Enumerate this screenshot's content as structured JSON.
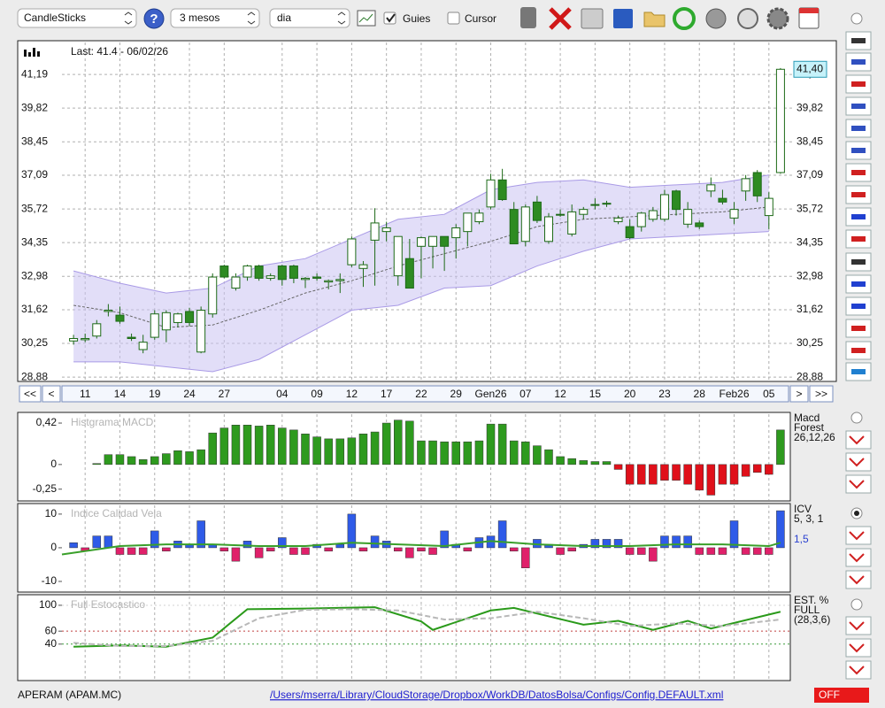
{
  "toolbar": {
    "chart_type": "CandleSticks",
    "help": "?",
    "period": "3 mesos",
    "interval": "dia",
    "guides": {
      "label": "Guies",
      "checked": true
    },
    "cursor": {
      "label": "Cursor",
      "checked": false
    }
  },
  "navigation": [
    "<<",
    "<",
    ">",
    ">>"
  ],
  "chart_data": [
    {
      "type": "candlestick",
      "title": "Last: 41.4 - 06/02/26",
      "last_label": {
        "value": 41.4,
        "label": "41,40"
      },
      "xlim": [
        -1,
        62
      ],
      "xticks": [
        {
          "value": 1,
          "label": "11"
        },
        {
          "value": 4,
          "label": "14"
        },
        {
          "value": 7,
          "label": "19"
        },
        {
          "value": 10,
          "label": "24"
        },
        {
          "value": 13,
          "label": "27"
        },
        {
          "value": 18,
          "label": "04"
        },
        {
          "value": 21,
          "label": "09"
        },
        {
          "value": 24,
          "label": "12"
        },
        {
          "value": 27,
          "label": "17"
        },
        {
          "value": 30,
          "label": "22"
        },
        {
          "value": 33,
          "label": "29"
        },
        {
          "value": 36,
          "label": "Gen26"
        },
        {
          "value": 39,
          "label": "07"
        },
        {
          "value": 42,
          "label": "12"
        },
        {
          "value": 45,
          "label": "15"
        },
        {
          "value": 48,
          "label": "20"
        },
        {
          "value": 51,
          "label": "23"
        },
        {
          "value": 54,
          "label": "28"
        },
        {
          "value": 57,
          "label": "Feb26"
        },
        {
          "value": 60,
          "label": "05"
        }
      ],
      "ylim": [
        28.74,
        42.49
      ],
      "yticks": [
        {
          "value": 28.88,
          "label": "28,88"
        },
        {
          "value": 30.25,
          "label": "30,25"
        },
        {
          "value": 31.62,
          "label": "31,62"
        },
        {
          "value": 32.98,
          "label": "32,98"
        },
        {
          "value": 34.35,
          "label": "34,35"
        },
        {
          "value": 35.72,
          "label": "35,72"
        },
        {
          "value": 37.09,
          "label": "37,09"
        },
        {
          "value": 38.45,
          "label": "38,45"
        },
        {
          "value": 39.82,
          "label": "39,82"
        },
        {
          "value": 41.19,
          "label": "41,19"
        }
      ],
      "grid": true,
      "up_color": "#ffffff",
      "down_color": "#2e8b22",
      "edge_color": "#1d6a17",
      "open": [
        30.35,
        30.4,
        30.55,
        31.55,
        31.4,
        30.5,
        30.0,
        30.5,
        30.8,
        31.1,
        31.55,
        29.9,
        31.45,
        33.4,
        32.5,
        32.95,
        33.4,
        32.9,
        33.4,
        33.4,
        32.85,
        32.95,
        32.75,
        32.8,
        33.45,
        33.3,
        34.45,
        34.8,
        33.0,
        33.7,
        34.2,
        34.2,
        34.6,
        34.55,
        34.8,
        35.2,
        35.8,
        36.9,
        35.7,
        34.4,
        36.0,
        34.4,
        35.5,
        34.7,
        35.5,
        35.9,
        35.95,
        35.2,
        35.0,
        35.0,
        35.3,
        35.3,
        36.45,
        35.1,
        35.15,
        36.45,
        36.15,
        35.35,
        36.45,
        37.2,
        35.45,
        37.2
      ],
      "high": [
        30.6,
        30.65,
        31.2,
        31.85,
        31.75,
        30.65,
        30.6,
        31.6,
        31.6,
        31.5,
        31.7,
        31.75,
        33.1,
        33.45,
        33.1,
        33.45,
        33.45,
        33.1,
        33.45,
        33.45,
        32.95,
        33.1,
        32.85,
        33.1,
        34.6,
        33.6,
        35.75,
        35.2,
        34.6,
        34.5,
        34.6,
        34.6,
        34.6,
        35.1,
        35.55,
        35.7,
        37.15,
        37.35,
        36.0,
        35.9,
        36.25,
        35.55,
        35.7,
        35.9,
        35.8,
        36.15,
        36.05,
        35.45,
        35.3,
        35.6,
        35.8,
        36.5,
        36.5,
        36.0,
        35.25,
        37.0,
        36.5,
        36.0,
        37.1,
        37.3,
        36.4,
        41.45
      ],
      "low": [
        30.2,
        30.3,
        30.45,
        31.35,
        31.05,
        30.35,
        29.85,
        30.4,
        30.3,
        30.9,
        30.95,
        29.85,
        31.3,
        32.9,
        32.4,
        32.8,
        32.8,
        32.8,
        32.6,
        32.7,
        32.5,
        32.8,
        32.45,
        32.3,
        33.35,
        32.55,
        32.6,
        34.4,
        32.6,
        32.5,
        32.9,
        33.3,
        33.2,
        33.7,
        34.2,
        35.1,
        35.7,
        36.05,
        34.3,
        34.2,
        35.15,
        34.3,
        35.4,
        34.6,
        35.3,
        35.7,
        35.8,
        35.1,
        34.5,
        34.8,
        35.2,
        35.2,
        35.45,
        34.95,
        34.9,
        36.2,
        35.9,
        35.1,
        36.05,
        36.0,
        34.9,
        37.15
      ],
      "close": [
        30.45,
        30.45,
        31.05,
        31.6,
        31.15,
        30.45,
        30.3,
        31.45,
        31.5,
        31.45,
        31.1,
        31.6,
        32.95,
        32.95,
        32.95,
        33.4,
        32.9,
        33.0,
        32.85,
        32.9,
        32.9,
        32.9,
        32.8,
        32.85,
        34.5,
        33.45,
        35.15,
        34.95,
        34.6,
        32.5,
        34.55,
        34.6,
        34.2,
        34.95,
        35.55,
        35.55,
        36.9,
        36.1,
        34.3,
        35.8,
        35.25,
        35.4,
        35.5,
        35.6,
        35.7,
        35.9,
        35.95,
        35.35,
        34.55,
        35.55,
        35.65,
        36.3,
        35.7,
        35.7,
        35.0,
        36.7,
        36.0,
        35.7,
        36.95,
        36.25,
        36.15,
        41.4
      ],
      "bands": {
        "color": "#cbc3f2",
        "x": [
          0,
          4,
          8,
          12,
          16,
          20,
          24,
          28,
          32,
          36,
          40,
          44,
          48,
          52,
          56,
          60
        ],
        "upper": [
          33.2,
          32.7,
          32.3,
          32.5,
          33.4,
          33.7,
          34.5,
          35.3,
          35.5,
          36.5,
          36.8,
          36.9,
          36.6,
          36.7,
          36.8,
          37.1
        ],
        "middle": [
          31.8,
          31.5,
          30.9,
          31.0,
          31.6,
          32.3,
          32.8,
          33.4,
          33.9,
          34.4,
          35.0,
          35.3,
          35.4,
          35.5,
          35.6,
          35.8
        ],
        "lower": [
          29.5,
          29.5,
          29.3,
          29.1,
          29.6,
          30.6,
          31.6,
          31.8,
          32.5,
          32.6,
          33.4,
          34.0,
          34.5,
          34.6,
          34.7,
          34.8
        ]
      }
    },
    {
      "type": "bar",
      "title": "Histgrama MACD",
      "legend": [
        "Macd",
        "Forest",
        "26,12,26"
      ],
      "xlim": [
        -1,
        62
      ],
      "ylim": [
        -0.36,
        0.51
      ],
      "yticks": [
        {
          "value": 0.42,
          "label": "0,42"
        },
        0,
        {
          "value": -0.25,
          "label": "-0,25"
        }
      ],
      "positive_color": "#2e9a1e",
      "negative_color": "#e0101a",
      "values": [
        0,
        0,
        0.01,
        0.1,
        0.1,
        0.08,
        0.05,
        0.08,
        0.11,
        0.14,
        0.13,
        0.15,
        0.32,
        0.37,
        0.4,
        0.4,
        0.39,
        0.4,
        0.37,
        0.35,
        0.31,
        0.28,
        0.26,
        0.26,
        0.27,
        0.31,
        0.33,
        0.42,
        0.45,
        0.44,
        0.24,
        0.24,
        0.23,
        0.23,
        0.23,
        0.24,
        0.41,
        0.41,
        0.24,
        0.23,
        0.19,
        0.15,
        0.08,
        0.06,
        0.04,
        0.03,
        0.03,
        -0.05,
        -0.2,
        -0.2,
        -0.2,
        -0.16,
        -0.16,
        -0.2,
        -0.26,
        -0.31,
        -0.2,
        -0.2,
        -0.12,
        -0.08,
        -0.1,
        0.35
      ]
    },
    {
      "type": "bar",
      "title": "Indice Calidad Vela",
      "legend": [
        "ICV",
        "5, 3, 1",
        "1,5"
      ],
      "xlim": [
        -1,
        62
      ],
      "ylim": [
        -12.9,
        12.6
      ],
      "yticks": [
        10,
        0,
        -10
      ],
      "positive_color": "#2f5be8",
      "negative_color": "#e0206a",
      "values": [
        1.5,
        -1,
        3.5,
        3.5,
        -2,
        -2,
        -2,
        5,
        -1,
        2,
        1,
        8,
        1,
        -1,
        -4,
        2,
        -3,
        -1,
        3,
        -2,
        -2,
        1,
        -1,
        1,
        10,
        -1,
        3.5,
        2,
        -1,
        -3,
        -1,
        -2,
        5,
        1,
        -1,
        3,
        3.5,
        8,
        -1,
        -6,
        2.5,
        1,
        -2,
        -1,
        1,
        2.5,
        2.5,
        2.5,
        -2,
        -2,
        -4,
        3.5,
        3.5,
        3.5,
        -2,
        -2,
        -2,
        8,
        -2,
        -2,
        -2,
        11
      ],
      "line": {
        "color": "#3aa02a",
        "x": [
          -1,
          4,
          8,
          12,
          16,
          20,
          24,
          28,
          32,
          36,
          40,
          44,
          48,
          52,
          56,
          60,
          61
        ],
        "values": [
          -2,
          0.5,
          1,
          1,
          0.5,
          0.5,
          1.5,
          1,
          0.5,
          2,
          1,
          0.5,
          0.5,
          1,
          1,
          0.5,
          1.5
        ]
      }
    },
    {
      "type": "line",
      "title": "Full Estocastico",
      "legend": [
        "EST. %",
        "FULL",
        "(28,3,6)"
      ],
      "xlim": [
        -1,
        62
      ],
      "ylim": [
        -15,
        113.6
      ],
      "yticks": [
        100,
        60,
        40
      ],
      "grid_colors": [
        "#d0d0d0",
        "#c04040",
        "#3a9a3a"
      ],
      "series": [
        {
          "color": "#2a9a1a",
          "dashed": false,
          "x": [
            0,
            4,
            8,
            12,
            15,
            20,
            26,
            30,
            31,
            36,
            38,
            44,
            47,
            50,
            53,
            55,
            61
          ],
          "values": [
            36,
            38,
            36,
            50,
            94,
            95,
            97,
            75,
            62,
            92,
            96,
            70,
            76,
            62,
            76,
            64,
            90
          ]
        },
        {
          "color": "#b8b8b8",
          "dashed": true,
          "x": [
            0,
            4,
            8,
            12,
            16,
            20,
            24,
            28,
            32,
            36,
            40,
            44,
            48,
            52,
            56,
            61
          ],
          "values": [
            42,
            37,
            37,
            45,
            80,
            93,
            94,
            92,
            78,
            80,
            90,
            80,
            68,
            72,
            68,
            78
          ]
        }
      ]
    }
  ],
  "status_bar": {
    "symbol": "APERAM (APAM.MC)",
    "config_path": "/Users/mserra/Library/CloudStorage/Dropbox/WorkDB/DatosBolsa/Configs/Config.DEFAULT.xml",
    "state": "OFF"
  }
}
